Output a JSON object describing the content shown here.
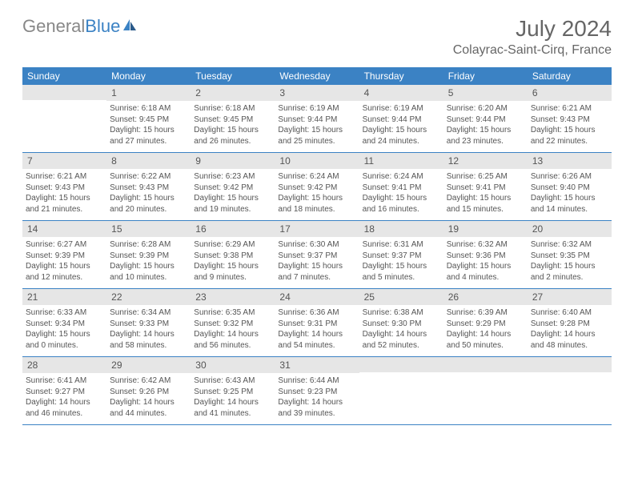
{
  "logo": {
    "text_gray": "General",
    "text_blue": "Blue"
  },
  "title": "July 2024",
  "location": "Colayrac-Saint-Cirq, France",
  "colors": {
    "header_blue": "#3b82c4",
    "day_header_gray": "#e6e6e6",
    "text_gray": "#555",
    "logo_gray": "#888"
  },
  "dow": [
    "Sunday",
    "Monday",
    "Tuesday",
    "Wednesday",
    "Thursday",
    "Friday",
    "Saturday"
  ],
  "weeks": [
    [
      null,
      {
        "n": "1",
        "sr": "Sunrise: 6:18 AM",
        "ss": "Sunset: 9:45 PM",
        "d1": "Daylight: 15 hours",
        "d2": "and 27 minutes."
      },
      {
        "n": "2",
        "sr": "Sunrise: 6:18 AM",
        "ss": "Sunset: 9:45 PM",
        "d1": "Daylight: 15 hours",
        "d2": "and 26 minutes."
      },
      {
        "n": "3",
        "sr": "Sunrise: 6:19 AM",
        "ss": "Sunset: 9:44 PM",
        "d1": "Daylight: 15 hours",
        "d2": "and 25 minutes."
      },
      {
        "n": "4",
        "sr": "Sunrise: 6:19 AM",
        "ss": "Sunset: 9:44 PM",
        "d1": "Daylight: 15 hours",
        "d2": "and 24 minutes."
      },
      {
        "n": "5",
        "sr": "Sunrise: 6:20 AM",
        "ss": "Sunset: 9:44 PM",
        "d1": "Daylight: 15 hours",
        "d2": "and 23 minutes."
      },
      {
        "n": "6",
        "sr": "Sunrise: 6:21 AM",
        "ss": "Sunset: 9:43 PM",
        "d1": "Daylight: 15 hours",
        "d2": "and 22 minutes."
      }
    ],
    [
      {
        "n": "7",
        "sr": "Sunrise: 6:21 AM",
        "ss": "Sunset: 9:43 PM",
        "d1": "Daylight: 15 hours",
        "d2": "and 21 minutes."
      },
      {
        "n": "8",
        "sr": "Sunrise: 6:22 AM",
        "ss": "Sunset: 9:43 PM",
        "d1": "Daylight: 15 hours",
        "d2": "and 20 minutes."
      },
      {
        "n": "9",
        "sr": "Sunrise: 6:23 AM",
        "ss": "Sunset: 9:42 PM",
        "d1": "Daylight: 15 hours",
        "d2": "and 19 minutes."
      },
      {
        "n": "10",
        "sr": "Sunrise: 6:24 AM",
        "ss": "Sunset: 9:42 PM",
        "d1": "Daylight: 15 hours",
        "d2": "and 18 minutes."
      },
      {
        "n": "11",
        "sr": "Sunrise: 6:24 AM",
        "ss": "Sunset: 9:41 PM",
        "d1": "Daylight: 15 hours",
        "d2": "and 16 minutes."
      },
      {
        "n": "12",
        "sr": "Sunrise: 6:25 AM",
        "ss": "Sunset: 9:41 PM",
        "d1": "Daylight: 15 hours",
        "d2": "and 15 minutes."
      },
      {
        "n": "13",
        "sr": "Sunrise: 6:26 AM",
        "ss": "Sunset: 9:40 PM",
        "d1": "Daylight: 15 hours",
        "d2": "and 14 minutes."
      }
    ],
    [
      {
        "n": "14",
        "sr": "Sunrise: 6:27 AM",
        "ss": "Sunset: 9:39 PM",
        "d1": "Daylight: 15 hours",
        "d2": "and 12 minutes."
      },
      {
        "n": "15",
        "sr": "Sunrise: 6:28 AM",
        "ss": "Sunset: 9:39 PM",
        "d1": "Daylight: 15 hours",
        "d2": "and 10 minutes."
      },
      {
        "n": "16",
        "sr": "Sunrise: 6:29 AM",
        "ss": "Sunset: 9:38 PM",
        "d1": "Daylight: 15 hours",
        "d2": "and 9 minutes."
      },
      {
        "n": "17",
        "sr": "Sunrise: 6:30 AM",
        "ss": "Sunset: 9:37 PM",
        "d1": "Daylight: 15 hours",
        "d2": "and 7 minutes."
      },
      {
        "n": "18",
        "sr": "Sunrise: 6:31 AM",
        "ss": "Sunset: 9:37 PM",
        "d1": "Daylight: 15 hours",
        "d2": "and 5 minutes."
      },
      {
        "n": "19",
        "sr": "Sunrise: 6:32 AM",
        "ss": "Sunset: 9:36 PM",
        "d1": "Daylight: 15 hours",
        "d2": "and 4 minutes."
      },
      {
        "n": "20",
        "sr": "Sunrise: 6:32 AM",
        "ss": "Sunset: 9:35 PM",
        "d1": "Daylight: 15 hours",
        "d2": "and 2 minutes."
      }
    ],
    [
      {
        "n": "21",
        "sr": "Sunrise: 6:33 AM",
        "ss": "Sunset: 9:34 PM",
        "d1": "Daylight: 15 hours",
        "d2": "and 0 minutes."
      },
      {
        "n": "22",
        "sr": "Sunrise: 6:34 AM",
        "ss": "Sunset: 9:33 PM",
        "d1": "Daylight: 14 hours",
        "d2": "and 58 minutes."
      },
      {
        "n": "23",
        "sr": "Sunrise: 6:35 AM",
        "ss": "Sunset: 9:32 PM",
        "d1": "Daylight: 14 hours",
        "d2": "and 56 minutes."
      },
      {
        "n": "24",
        "sr": "Sunrise: 6:36 AM",
        "ss": "Sunset: 9:31 PM",
        "d1": "Daylight: 14 hours",
        "d2": "and 54 minutes."
      },
      {
        "n": "25",
        "sr": "Sunrise: 6:38 AM",
        "ss": "Sunset: 9:30 PM",
        "d1": "Daylight: 14 hours",
        "d2": "and 52 minutes."
      },
      {
        "n": "26",
        "sr": "Sunrise: 6:39 AM",
        "ss": "Sunset: 9:29 PM",
        "d1": "Daylight: 14 hours",
        "d2": "and 50 minutes."
      },
      {
        "n": "27",
        "sr": "Sunrise: 6:40 AM",
        "ss": "Sunset: 9:28 PM",
        "d1": "Daylight: 14 hours",
        "d2": "and 48 minutes."
      }
    ],
    [
      {
        "n": "28",
        "sr": "Sunrise: 6:41 AM",
        "ss": "Sunset: 9:27 PM",
        "d1": "Daylight: 14 hours",
        "d2": "and 46 minutes."
      },
      {
        "n": "29",
        "sr": "Sunrise: 6:42 AM",
        "ss": "Sunset: 9:26 PM",
        "d1": "Daylight: 14 hours",
        "d2": "and 44 minutes."
      },
      {
        "n": "30",
        "sr": "Sunrise: 6:43 AM",
        "ss": "Sunset: 9:25 PM",
        "d1": "Daylight: 14 hours",
        "d2": "and 41 minutes."
      },
      {
        "n": "31",
        "sr": "Sunrise: 6:44 AM",
        "ss": "Sunset: 9:23 PM",
        "d1": "Daylight: 14 hours",
        "d2": "and 39 minutes."
      },
      null,
      null,
      null
    ]
  ]
}
